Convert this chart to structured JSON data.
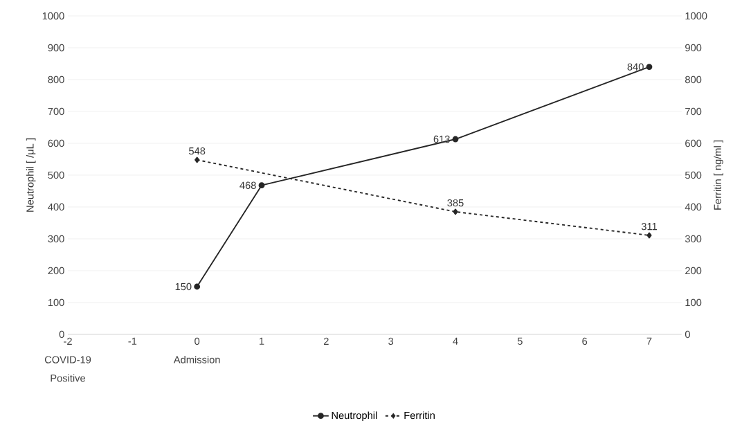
{
  "chart_data": {
    "type": "line",
    "xlim": [
      -2,
      7.5
    ],
    "xticks": [
      {
        "value": -2,
        "label": "-2 COVID-19 Positive"
      },
      -1,
      {
        "value": 0,
        "label": "0 Admission"
      },
      1,
      2,
      3,
      4,
      5,
      6,
      7
    ],
    "ylim": [
      0,
      1000
    ],
    "yticks": [
      0,
      100,
      200,
      300,
      400,
      500,
      600,
      700,
      800,
      900,
      1000
    ],
    "y2lim": [
      0,
      1000
    ],
    "y2ticks": [
      0,
      100,
      200,
      300,
      400,
      500,
      600,
      700,
      800,
      900,
      1000
    ],
    "ylabel": "Neutrophil [ /μL ]",
    "y2label": "Ferritin [ ng/ml ]",
    "grid": "y",
    "legend": "bottom",
    "data_labels": true,
    "series": [
      {
        "name": "Neutrophil",
        "color": "#262626",
        "x": [
          0,
          1,
          4,
          7
        ],
        "values": [
          150,
          468,
          613,
          840
        ],
        "marker": "circle",
        "line_style": "solid"
      },
      {
        "name": "Ferritin",
        "color": "#262626",
        "x": [
          0,
          4,
          7
        ],
        "values": [
          548,
          385,
          311
        ],
        "marker": "diamond",
        "line_style": "dashed",
        "axis": "y2"
      }
    ]
  }
}
